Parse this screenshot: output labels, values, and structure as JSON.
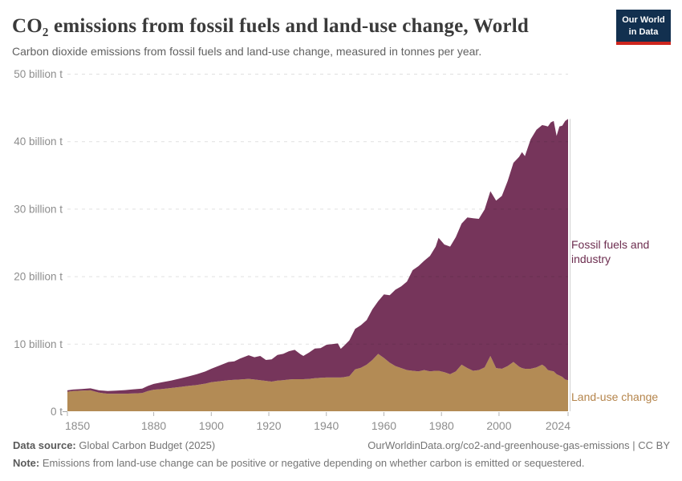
{
  "header": {
    "title": "CO₂ emissions from fossil fuels and land-use change, World",
    "subtitle": "Carbon dioxide emissions from fossil fuels and land-use change, measured in tonnes per year.",
    "logo": {
      "line1": "Our World",
      "line2": "in Data",
      "bg_color": "#12304f",
      "bar_color": "#ce261e"
    }
  },
  "chart_data": {
    "type": "area",
    "stacked": true,
    "title": "CO₂ emissions from fossil fuels and land-use change, World",
    "unit": "tonnes of CO₂ per year",
    "grid": "horizontal dashed",
    "legend_position": "right-of-plot",
    "ylim": [
      0,
      50
    ],
    "yticks": [
      {
        "value": 0,
        "label": "0 t"
      },
      {
        "value": 10,
        "label": "10 billion t"
      },
      {
        "value": 20,
        "label": "20 billion t"
      },
      {
        "value": 30,
        "label": "30 billion t"
      },
      {
        "value": 40,
        "label": "40 billion t"
      },
      {
        "value": 50,
        "label": "50 billion t"
      }
    ],
    "xticks": [
      1850,
      1880,
      1900,
      1920,
      1940,
      1960,
      1980,
      2000,
      2024
    ],
    "x": [
      1850,
      1852,
      1855,
      1858,
      1861,
      1864,
      1867,
      1870,
      1873,
      1876,
      1878,
      1880,
      1883,
      1886,
      1889,
      1892,
      1895,
      1898,
      1900,
      1903,
      1906,
      1908,
      1910,
      1913,
      1915,
      1917,
      1919,
      1921,
      1923,
      1925,
      1927,
      1929,
      1931,
      1932,
      1934,
      1936,
      1938,
      1940,
      1942,
      1944,
      1945,
      1946,
      1948,
      1950,
      1952,
      1954,
      1956,
      1958,
      1960,
      1962,
      1964,
      1966,
      1968,
      1970,
      1972,
      1974,
      1976,
      1978,
      1979,
      1981,
      1983,
      1985,
      1987,
      1989,
      1991,
      1993,
      1995,
      1997,
      1999,
      2001,
      2003,
      2005,
      2007,
      2008,
      2009,
      2011,
      2013,
      2015,
      2016,
      2017,
      2018,
      2019,
      2020,
      2021,
      2022,
      2023,
      2024
    ],
    "series": [
      {
        "name": "Land-use change",
        "color": "#b38b55",
        "label_color": "#b5854c",
        "values_unit": "billion t",
        "values": [
          2.9,
          3.0,
          3.05,
          3.1,
          2.75,
          2.6,
          2.6,
          2.6,
          2.65,
          2.7,
          3.0,
          3.2,
          3.3,
          3.45,
          3.6,
          3.75,
          3.9,
          4.1,
          4.3,
          4.45,
          4.6,
          4.65,
          4.7,
          4.8,
          4.7,
          4.6,
          4.5,
          4.4,
          4.55,
          4.6,
          4.7,
          4.75,
          4.75,
          4.75,
          4.8,
          4.9,
          4.95,
          5.0,
          5.0,
          5.0,
          5.0,
          5.05,
          5.2,
          6.2,
          6.45,
          6.9,
          7.6,
          8.5,
          7.9,
          7.2,
          6.7,
          6.4,
          6.1,
          6.0,
          5.9,
          6.1,
          5.9,
          6.0,
          6.0,
          5.8,
          5.5,
          5.9,
          6.9,
          6.4,
          6.0,
          6.1,
          6.5,
          8.2,
          6.4,
          6.3,
          6.7,
          7.3,
          6.6,
          6.4,
          6.3,
          6.3,
          6.5,
          6.9,
          6.6,
          6.1,
          6.0,
          5.9,
          5.5,
          5.3,
          5.1,
          4.7,
          4.6
        ]
      },
      {
        "name": "Fossil fuels and industry",
        "color": "#76355b",
        "label_color": "#6d2e50",
        "values_unit": "billion t",
        "values": [
          0.2,
          0.22,
          0.25,
          0.3,
          0.35,
          0.4,
          0.45,
          0.53,
          0.6,
          0.65,
          0.75,
          0.85,
          1.0,
          1.1,
          1.25,
          1.4,
          1.6,
          1.8,
          2.0,
          2.35,
          2.7,
          2.75,
          3.1,
          3.5,
          3.3,
          3.6,
          3.1,
          3.3,
          3.8,
          3.9,
          4.2,
          4.35,
          3.7,
          3.45,
          3.9,
          4.4,
          4.4,
          4.85,
          4.95,
          5.05,
          4.25,
          4.6,
          5.3,
          6.0,
          6.3,
          6.6,
          7.5,
          7.8,
          9.4,
          10.0,
          11.3,
          12.1,
          13.1,
          14.9,
          15.6,
          16.2,
          17.1,
          18.4,
          19.7,
          18.9,
          18.9,
          19.9,
          20.9,
          22.3,
          22.6,
          22.4,
          23.4,
          24.4,
          24.8,
          25.6,
          27.4,
          29.5,
          31.1,
          32.0,
          31.5,
          34.0,
          35.2,
          35.5,
          35.7,
          36.1,
          36.8,
          37.1,
          35.3,
          36.9,
          37.2,
          38.3,
          38.7
        ]
      }
    ]
  },
  "footer": {
    "data_source_label": "Data source:",
    "data_source_value": "Global Carbon Budget (2025)",
    "url_credit": "OurWorldinData.org/co2-and-greenhouse-gas-emissions | CC BY",
    "note_label": "Note:",
    "note_text": "Emissions from land-use change can be positive or negative depending on whether carbon is emitted or sequestered."
  }
}
